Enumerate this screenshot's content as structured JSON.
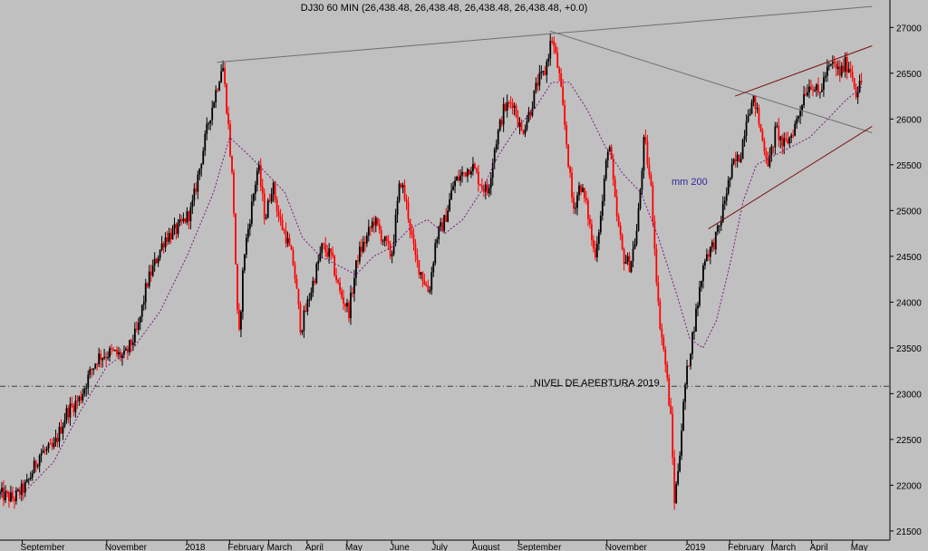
{
  "chart_data": {
    "type": "candlestick",
    "title": "DJ30 60 MIN (26,438.48, 26,438.48, 26,438.48, 26,438.48, +0.0)",
    "ylim": [
      21400,
      27300
    ],
    "y_ticks": [
      21500,
      22000,
      22500,
      23000,
      23500,
      24000,
      24500,
      25000,
      25500,
      26000,
      26500,
      27000
    ],
    "x_tick_labels": [
      "September",
      "November",
      "2018",
      "February",
      "March",
      "April",
      "May",
      "June",
      "July",
      "August",
      "September",
      "November",
      "2019",
      "February",
      "March",
      "April",
      "May"
    ],
    "x_tick_fractions": [
      0.025,
      0.12,
      0.21,
      0.258,
      0.302,
      0.345,
      0.39,
      0.44,
      0.487,
      0.532,
      0.583,
      0.682,
      0.772,
      0.82,
      0.868,
      0.912,
      0.958
    ],
    "price_path": [
      [
        0.0,
        21900
      ],
      [
        0.015,
        21850
      ],
      [
        0.03,
        22000
      ],
      [
        0.045,
        22350
      ],
      [
        0.06,
        22400
      ],
      [
        0.075,
        22800
      ],
      [
        0.09,
        22950
      ],
      [
        0.1,
        23200
      ],
      [
        0.11,
        23400
      ],
      [
        0.125,
        23450
      ],
      [
        0.14,
        23400
      ],
      [
        0.155,
        23700
      ],
      [
        0.165,
        24200
      ],
      [
        0.175,
        24450
      ],
      [
        0.185,
        24700
      ],
      [
        0.2,
        24800
      ],
      [
        0.215,
        25000
      ],
      [
        0.225,
        25500
      ],
      [
        0.235,
        26000
      ],
      [
        0.245,
        26400
      ],
      [
        0.25,
        26620
      ],
      [
        0.256,
        26000
      ],
      [
        0.262,
        25200
      ],
      [
        0.268,
        23500
      ],
      [
        0.274,
        24500
      ],
      [
        0.282,
        25000
      ],
      [
        0.29,
        25500
      ],
      [
        0.298,
        24900
      ],
      [
        0.306,
        25300
      ],
      [
        0.314,
        24900
      ],
      [
        0.322,
        24700
      ],
      [
        0.33,
        24400
      ],
      [
        0.338,
        23700
      ],
      [
        0.346,
        24000
      ],
      [
        0.354,
        24300
      ],
      [
        0.362,
        24600
      ],
      [
        0.372,
        24500
      ],
      [
        0.382,
        24100
      ],
      [
        0.392,
        23900
      ],
      [
        0.402,
        24500
      ],
      [
        0.412,
        24700
      ],
      [
        0.42,
        24900
      ],
      [
        0.43,
        24700
      ],
      [
        0.44,
        24500
      ],
      [
        0.45,
        25350
      ],
      [
        0.458,
        25000
      ],
      [
        0.466,
        24500
      ],
      [
        0.474,
        24300
      ],
      [
        0.482,
        24100
      ],
      [
        0.49,
        24700
      ],
      [
        0.5,
        24900
      ],
      [
        0.51,
        25300
      ],
      [
        0.52,
        25400
      ],
      [
        0.53,
        25500
      ],
      [
        0.54,
        25300
      ],
      [
        0.548,
        25200
      ],
      [
        0.556,
        25700
      ],
      [
        0.566,
        26100
      ],
      [
        0.576,
        26200
      ],
      [
        0.586,
        25850
      ],
      [
        0.596,
        26100
      ],
      [
        0.604,
        26400
      ],
      [
        0.612,
        26500
      ],
      [
        0.62,
        26900
      ],
      [
        0.628,
        26500
      ],
      [
        0.636,
        25800
      ],
      [
        0.644,
        25000
      ],
      [
        0.652,
        25300
      ],
      [
        0.66,
        25000
      ],
      [
        0.668,
        24500
      ],
      [
        0.676,
        25000
      ],
      [
        0.684,
        25800
      ],
      [
        0.692,
        25000
      ],
      [
        0.7,
        24500
      ],
      [
        0.708,
        24400
      ],
      [
        0.716,
        24800
      ],
      [
        0.724,
        25800
      ],
      [
        0.732,
        25200
      ],
      [
        0.74,
        23900
      ],
      [
        0.748,
        23300
      ],
      [
        0.754,
        22700
      ],
      [
        0.758,
        21800
      ],
      [
        0.764,
        22400
      ],
      [
        0.77,
        23100
      ],
      [
        0.776,
        23500
      ],
      [
        0.784,
        24000
      ],
      [
        0.792,
        24500
      ],
      [
        0.8,
        24600
      ],
      [
        0.808,
        24800
      ],
      [
        0.816,
        25200
      ],
      [
        0.824,
        25500
      ],
      [
        0.832,
        25600
      ],
      [
        0.84,
        26100
      ],
      [
        0.848,
        26200
      ],
      [
        0.856,
        25800
      ],
      [
        0.864,
        25500
      ],
      [
        0.872,
        25900
      ],
      [
        0.88,
        25700
      ],
      [
        0.888,
        25800
      ],
      [
        0.896,
        26000
      ],
      [
        0.904,
        26300
      ],
      [
        0.912,
        26400
      ],
      [
        0.92,
        26250
      ],
      [
        0.928,
        26500
      ],
      [
        0.936,
        26600
      ],
      [
        0.944,
        26500
      ],
      [
        0.95,
        26600
      ],
      [
        0.956,
        26550
      ],
      [
        0.962,
        26300
      ],
      [
        0.968,
        26400
      ]
    ],
    "ma200_path": [
      [
        0.0,
        21900
      ],
      [
        0.03,
        21950
      ],
      [
        0.06,
        22250
      ],
      [
        0.09,
        22800
      ],
      [
        0.12,
        23300
      ],
      [
        0.15,
        23500
      ],
      [
        0.18,
        23900
      ],
      [
        0.21,
        24500
      ],
      [
        0.24,
        25200
      ],
      [
        0.258,
        25800
      ],
      [
        0.28,
        25600
      ],
      [
        0.3,
        25400
      ],
      [
        0.32,
        25200
      ],
      [
        0.34,
        24700
      ],
      [
        0.36,
        24500
      ],
      [
        0.38,
        24400
      ],
      [
        0.4,
        24300
      ],
      [
        0.42,
        24500
      ],
      [
        0.44,
        24600
      ],
      [
        0.46,
        24800
      ],
      [
        0.48,
        24900
      ],
      [
        0.5,
        24750
      ],
      [
        0.52,
        24900
      ],
      [
        0.54,
        25200
      ],
      [
        0.56,
        25600
      ],
      [
        0.58,
        25900
      ],
      [
        0.6,
        26100
      ],
      [
        0.62,
        26400
      ],
      [
        0.64,
        26400
      ],
      [
        0.66,
        26100
      ],
      [
        0.68,
        25700
      ],
      [
        0.7,
        25400
      ],
      [
        0.72,
        25200
      ],
      [
        0.74,
        24700
      ],
      [
        0.76,
        24100
      ],
      [
        0.775,
        23600
      ],
      [
        0.79,
        23500
      ],
      [
        0.805,
        23800
      ],
      [
        0.82,
        24400
      ],
      [
        0.835,
        25100
      ],
      [
        0.85,
        25500
      ],
      [
        0.87,
        25600
      ],
      [
        0.89,
        25700
      ],
      [
        0.91,
        25800
      ],
      [
        0.93,
        26000
      ],
      [
        0.95,
        26200
      ],
      [
        0.968,
        26350
      ]
    ],
    "trendlines": [
      {
        "from": [
          0.244,
          26620
        ],
        "to": [
          0.98,
          27230
        ]
      },
      {
        "from": [
          0.618,
          26960
        ],
        "to": [
          0.98,
          25850
        ]
      },
      {
        "from": [
          0.826,
          26250
        ],
        "to": [
          0.98,
          26800
        ]
      },
      {
        "from": [
          0.796,
          24800
        ],
        "to": [
          0.98,
          25920
        ]
      }
    ],
    "horizontal_level": {
      "value": 23080,
      "label": "NIVEL DE APERTURA 2019"
    },
    "ma_label": "mm 200",
    "colors": {
      "background": "#c0c0c0",
      "up": "#000000",
      "down": "#ff0000",
      "ma": "#7a1a7a",
      "trendline": "#6e6e6e",
      "channel": "#7a1010",
      "level": "#404040"
    }
  }
}
